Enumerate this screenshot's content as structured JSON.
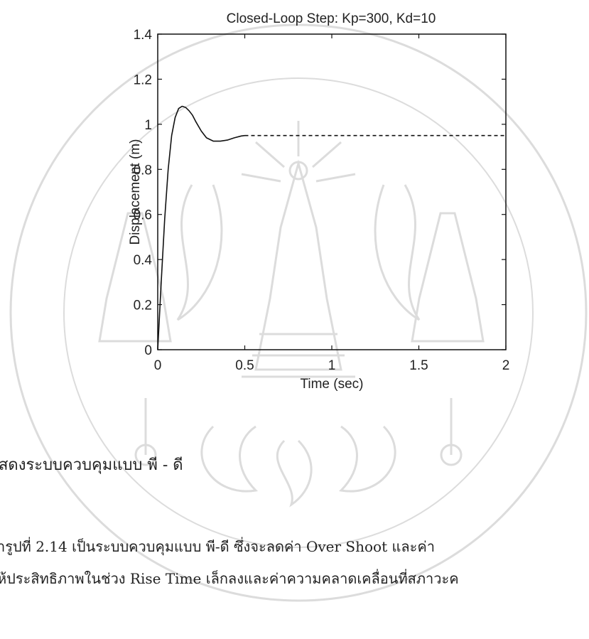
{
  "chart_data": {
    "type": "line",
    "title": "Closed-Loop Step: Kp=300, Kd=10",
    "xlabel": "Time (sec)",
    "ylabel": "Displacement (m)",
    "xlim": [
      0,
      2
    ],
    "ylim": [
      0,
      1.4
    ],
    "xticks": [
      0,
      0.5,
      1,
      1.5,
      2
    ],
    "xtick_labels": [
      "0",
      "0.5",
      "1",
      "1.5",
      "2"
    ],
    "yticks": [
      0,
      0.2,
      0.4,
      0.6,
      0.8,
      1,
      1.2,
      1.4
    ],
    "ytick_labels": [
      "0",
      "0.2",
      "0.4",
      "0.6",
      "0.8",
      "1",
      "1.2",
      "1.4"
    ],
    "grid": false,
    "series": [
      {
        "line_style": "solid",
        "x": [
          0,
          0.02,
          0.04,
          0.06,
          0.08,
          0.1,
          0.12,
          0.14,
          0.16,
          0.18,
          0.2,
          0.22,
          0.25,
          0.28,
          0.32,
          0.36,
          0.4,
          0.44,
          0.48,
          0.5
        ],
        "y": [
          0,
          0.3,
          0.58,
          0.8,
          0.95,
          1.03,
          1.07,
          1.08,
          1.075,
          1.06,
          1.04,
          1.01,
          0.97,
          0.94,
          0.925,
          0.925,
          0.93,
          0.94,
          0.948,
          0.95
        ]
      },
      {
        "line_style": "dashed",
        "x": [
          0.5,
          2
        ],
        "y": [
          0.95,
          0.95
        ]
      }
    ]
  },
  "document": {
    "caption": "สดงระบบควบคุมแบบ พี - ดี",
    "line1": "ารูปที่ 2.14 เป็นระบบควบคุมแบบ พี-ดี ซึ่งจะลดค่า Over Shoot และค่า",
    "line2": "ห้ประสิทธิภาพในช่วง Rise Time เล็กลงและค่าความคลาดเคลื่อนที่สภาวะค"
  }
}
